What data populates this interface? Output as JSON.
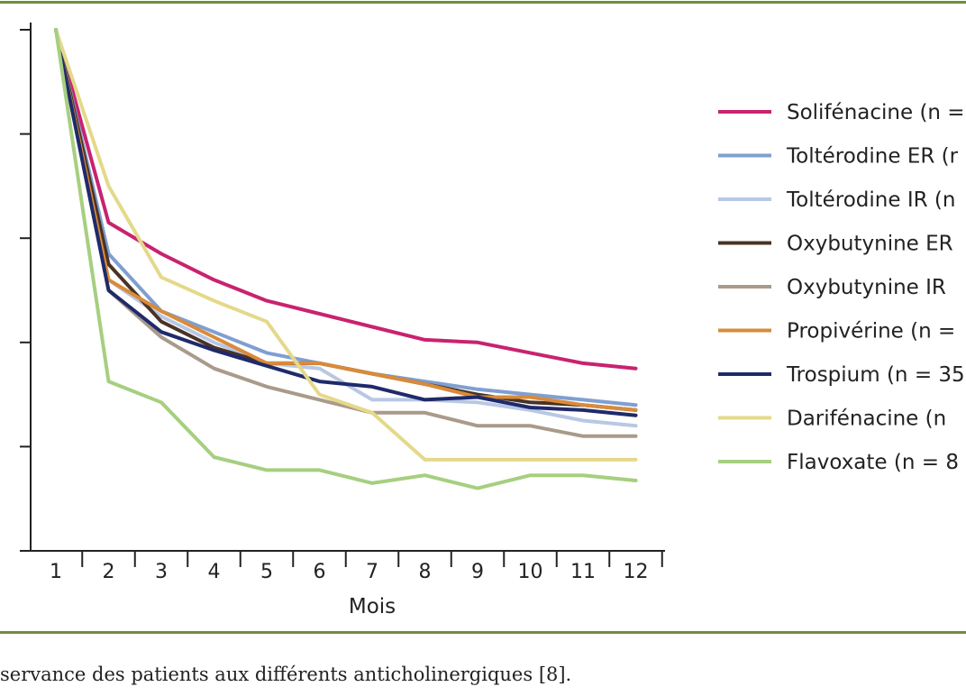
{
  "chart_data": {
    "type": "line",
    "xlabel": "Mois",
    "ylabel": "",
    "categories": [
      "1",
      "2",
      "3",
      "4",
      "5",
      "6",
      "7",
      "8",
      "9",
      "10",
      "11",
      "12"
    ],
    "ylim": [
      0,
      100
    ],
    "legend_position": "right",
    "grid": false,
    "series": [
      {
        "name": "Solifénacine (n =",
        "color": "#c8236f",
        "values": [
          100,
          63,
          57,
          52,
          48,
          45.5,
          43,
          40.5,
          40,
          38,
          36,
          35
        ]
      },
      {
        "name": "Toltérodine ER (r",
        "color": "#7f9fd2",
        "values": [
          100,
          57,
          46,
          42,
          38,
          36,
          34,
          32.5,
          31,
          30,
          29,
          28
        ]
      },
      {
        "name": "Toltérodine IR (n",
        "color": "#b8c8e4",
        "values": [
          100,
          52,
          45,
          40,
          36,
          35,
          29,
          29,
          28.5,
          27,
          25,
          24
        ]
      },
      {
        "name": "Oxybutynine ER",
        "color": "#4a3325",
        "values": [
          100,
          55,
          44,
          39,
          36,
          36,
          34,
          32,
          30,
          28.5,
          28,
          27
        ]
      },
      {
        "name": "Oxybutynine IR",
        "color": "#a99a8a",
        "values": [
          100,
          50,
          41,
          35,
          31.5,
          29,
          26.5,
          26.5,
          24,
          24,
          22,
          22
        ]
      },
      {
        "name": "Propivérine (n =",
        "color": "#d98b3a",
        "values": [
          100,
          52,
          46,
          41,
          36,
          36,
          34,
          32,
          29.5,
          29.5,
          28,
          27
        ]
      },
      {
        "name": "Trospium (n = 35",
        "color": "#1f2a6b",
        "values": [
          100,
          50,
          42,
          38.5,
          35.5,
          32.5,
          31.5,
          29,
          29.5,
          27.5,
          27,
          26
        ]
      },
      {
        "name": "Darifénacine (n",
        "color": "#e4d98a",
        "values": [
          100,
          70,
          52.5,
          48,
          44,
          30,
          26.5,
          17.5,
          17.5,
          17.5,
          17.5,
          17.5
        ]
      },
      {
        "name": "Flavoxate (n = 8",
        "color": "#a6cf80",
        "values": [
          100,
          32.5,
          28.5,
          18,
          15.5,
          15.5,
          13,
          14.5,
          12,
          14.5,
          14.5,
          13.5
        ]
      }
    ]
  },
  "caption": "servance des patients aux différents anticholinergiques [8]."
}
